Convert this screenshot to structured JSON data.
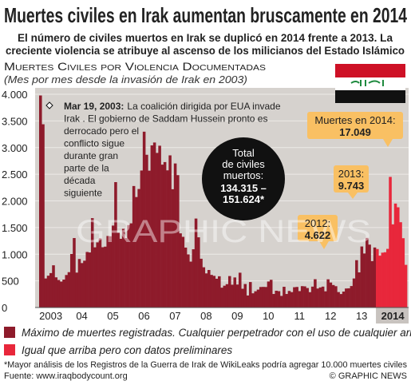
{
  "chart_data": {
    "type": "bar",
    "title": "Muertes civiles en Irak aumentan bruscamente en 2014",
    "subtitle": [
      "El número de civiles muertos en Irak se duplicó en 2014 frente a 2013. La",
      "creciente violencia se atribuye al ascenso de los milicianos del Estado Islámico"
    ],
    "section_title": "Muertes Civiles por Violencia Documentadas",
    "section_subtitle": "(Mes por mes desde la invasión de Irak en 2003)",
    "watermark": "GRAPHIC NEWS",
    "categories": [
      null,
      null,
      null,
      null,
      "2003",
      null,
      null,
      null,
      null,
      null,
      null,
      null,
      null,
      null,
      null,
      null,
      "04",
      null,
      null,
      null,
      null,
      null,
      null,
      null,
      null,
      null,
      null,
      null,
      "05",
      null,
      null,
      null,
      null,
      null,
      null,
      null,
      null,
      null,
      null,
      null,
      "06",
      null,
      null,
      null,
      null,
      null,
      null,
      null,
      null,
      null,
      null,
      null,
      "07",
      null,
      null,
      null,
      null,
      null,
      null,
      null,
      null,
      null,
      null,
      null,
      "08",
      null,
      null,
      null,
      null,
      null,
      null,
      null,
      null,
      null,
      null,
      null,
      "09",
      null,
      null,
      null,
      null,
      null,
      null,
      null,
      null,
      null,
      null,
      null,
      "10",
      null,
      null,
      null,
      null,
      null,
      null,
      null,
      null,
      null,
      null,
      null,
      "11",
      null,
      null,
      null,
      null,
      null,
      null,
      null,
      null,
      null,
      null,
      null,
      "12",
      null,
      null,
      null,
      null,
      null,
      null,
      null,
      null,
      null,
      null,
      null,
      "13",
      null,
      null,
      null,
      null,
      null,
      null,
      null,
      null,
      null,
      null,
      null,
      "2014",
      null,
      null,
      null,
      null,
      null
    ],
    "series": [
      {
        "name": "Máximo de muertes registradas. Cualquier perpetrador con el uso de cualquier arma",
        "color": "#8e1b2b",
        "values": [
          3977,
          3437,
          545,
          597,
          646,
          792,
          566,
          516,
          487,
          524,
          610,
          663,
          1004,
          1303,
          655,
          910,
          834,
          878,
          1042,
          1033,
          1676,
          1129,
          1222,
          1297,
          1131,
          1142,
          1342,
          1337,
          1537,
          2352,
          1403,
          1289,
          1476,
          1302,
          1546,
          1579,
          2279,
          2072,
          2223,
          2570,
          3298,
          2865,
          2567,
          3041,
          3095,
          2900,
          3035,
          2680,
          2728,
          2573,
          2854,
          2219,
          2702,
          2483,
          1391,
          1326,
          1124,
          997,
          861,
          1093,
          1669,
          1317,
          915,
          755,
          640,
          704,
          612,
          594,
          540,
          586,
          372,
          409,
          438,
          590,
          428,
          564,
          431,
          653,
          352,
          441,
          226,
          478,
          267,
          305,
          336,
          385,
          387,
          385,
          488,
          520,
          254,
          315,
          307,
          218,
          389,
          254,
          311,
          289,
          381,
          386,
          308,
          401,
          397,
          366,
          288,
          392,
          531,
          356,
          377,
          392,
          304,
          529,
          469,
          422,
          400,
          290,
          253,
          299,
          357,
          360,
          403,
          545,
          888,
          659,
          1145,
          1013,
          1306,
          1180,
          870,
          1126,
          null,
          null,
          null,
          null,
          null,
          null,
          null,
          null,
          null,
          null,
          null,
          null
        ]
      },
      {
        "name": "Igual que arriba pero con datos preliminares",
        "color": "#e8273b",
        "values": [
          null,
          null,
          null,
          null,
          null,
          null,
          null,
          null,
          null,
          null,
          null,
          null,
          null,
          null,
          null,
          null,
          null,
          null,
          null,
          null,
          null,
          null,
          null,
          null,
          null,
          null,
          null,
          null,
          null,
          null,
          null,
          null,
          null,
          null,
          null,
          null,
          null,
          null,
          null,
          null,
          null,
          null,
          null,
          null,
          null,
          null,
          null,
          null,
          null,
          null,
          null,
          null,
          null,
          null,
          null,
          null,
          null,
          null,
          null,
          null,
          null,
          null,
          null,
          null,
          null,
          null,
          null,
          null,
          null,
          null,
          null,
          null,
          null,
          null,
          null,
          null,
          null,
          null,
          null,
          null,
          null,
          null,
          null,
          null,
          null,
          null,
          null,
          null,
          null,
          null,
          null,
          null,
          null,
          null,
          null,
          null,
          null,
          null,
          null,
          null,
          null,
          null,
          null,
          null,
          null,
          null,
          null,
          null,
          null,
          null,
          null,
          null,
          null,
          null,
          null,
          null,
          null,
          null,
          null,
          null,
          null,
          null,
          null,
          null,
          null,
          null,
          null,
          null,
          null,
          null,
          1097,
          972,
          1029,
          1037,
          1100,
          2450,
          1560,
          1950,
          1880,
          1600,
          1300,
          800
        ]
      }
    ],
    "ylim": [
      0,
      4000
    ],
    "yticks": [
      0,
      500,
      {
        "value": 1000,
        "label": "1.000"
      },
      {
        "value": 1500,
        "label": "1.500"
      },
      {
        "value": 2000,
        "label": "2.000"
      },
      {
        "value": 2500,
        "label": "2.500"
      },
      {
        "value": 3000,
        "label": "3.000"
      },
      {
        "value": 3500,
        "label": "3.500"
      },
      {
        "value": 4000,
        "label": "4.000"
      }
    ],
    "grid": true,
    "annotation": {
      "label": "Mar 19, 2003:",
      "lines": [
        "La coalición dirigida por EUA invade",
        "Irak . El gobierno de Saddam Hussein pronto es",
        "derrocado pero el",
        "conflicto sigue",
        "durante gran",
        "parte de la",
        "década",
        "siguiente"
      ]
    },
    "total": {
      "lines": [
        "Total",
        "de civiles",
        "muertos:"
      ],
      "values": [
        "134.315 –",
        "151.624*"
      ]
    },
    "callouts": [
      {
        "label": "Muertes en 2014:",
        "value": "17.049"
      },
      {
        "label": "2013:",
        "value": "9.743"
      },
      {
        "label": "2012:",
        "value": "4.622"
      }
    ],
    "footnote": "*Mayor análisis de los Registros de la Guerra de Irak de WikiLeaks podría agregar 10.000 muertes civiles",
    "source": "Fuente: www.iraqbodycount.org",
    "credit": "© GRAPHIC NEWS"
  }
}
